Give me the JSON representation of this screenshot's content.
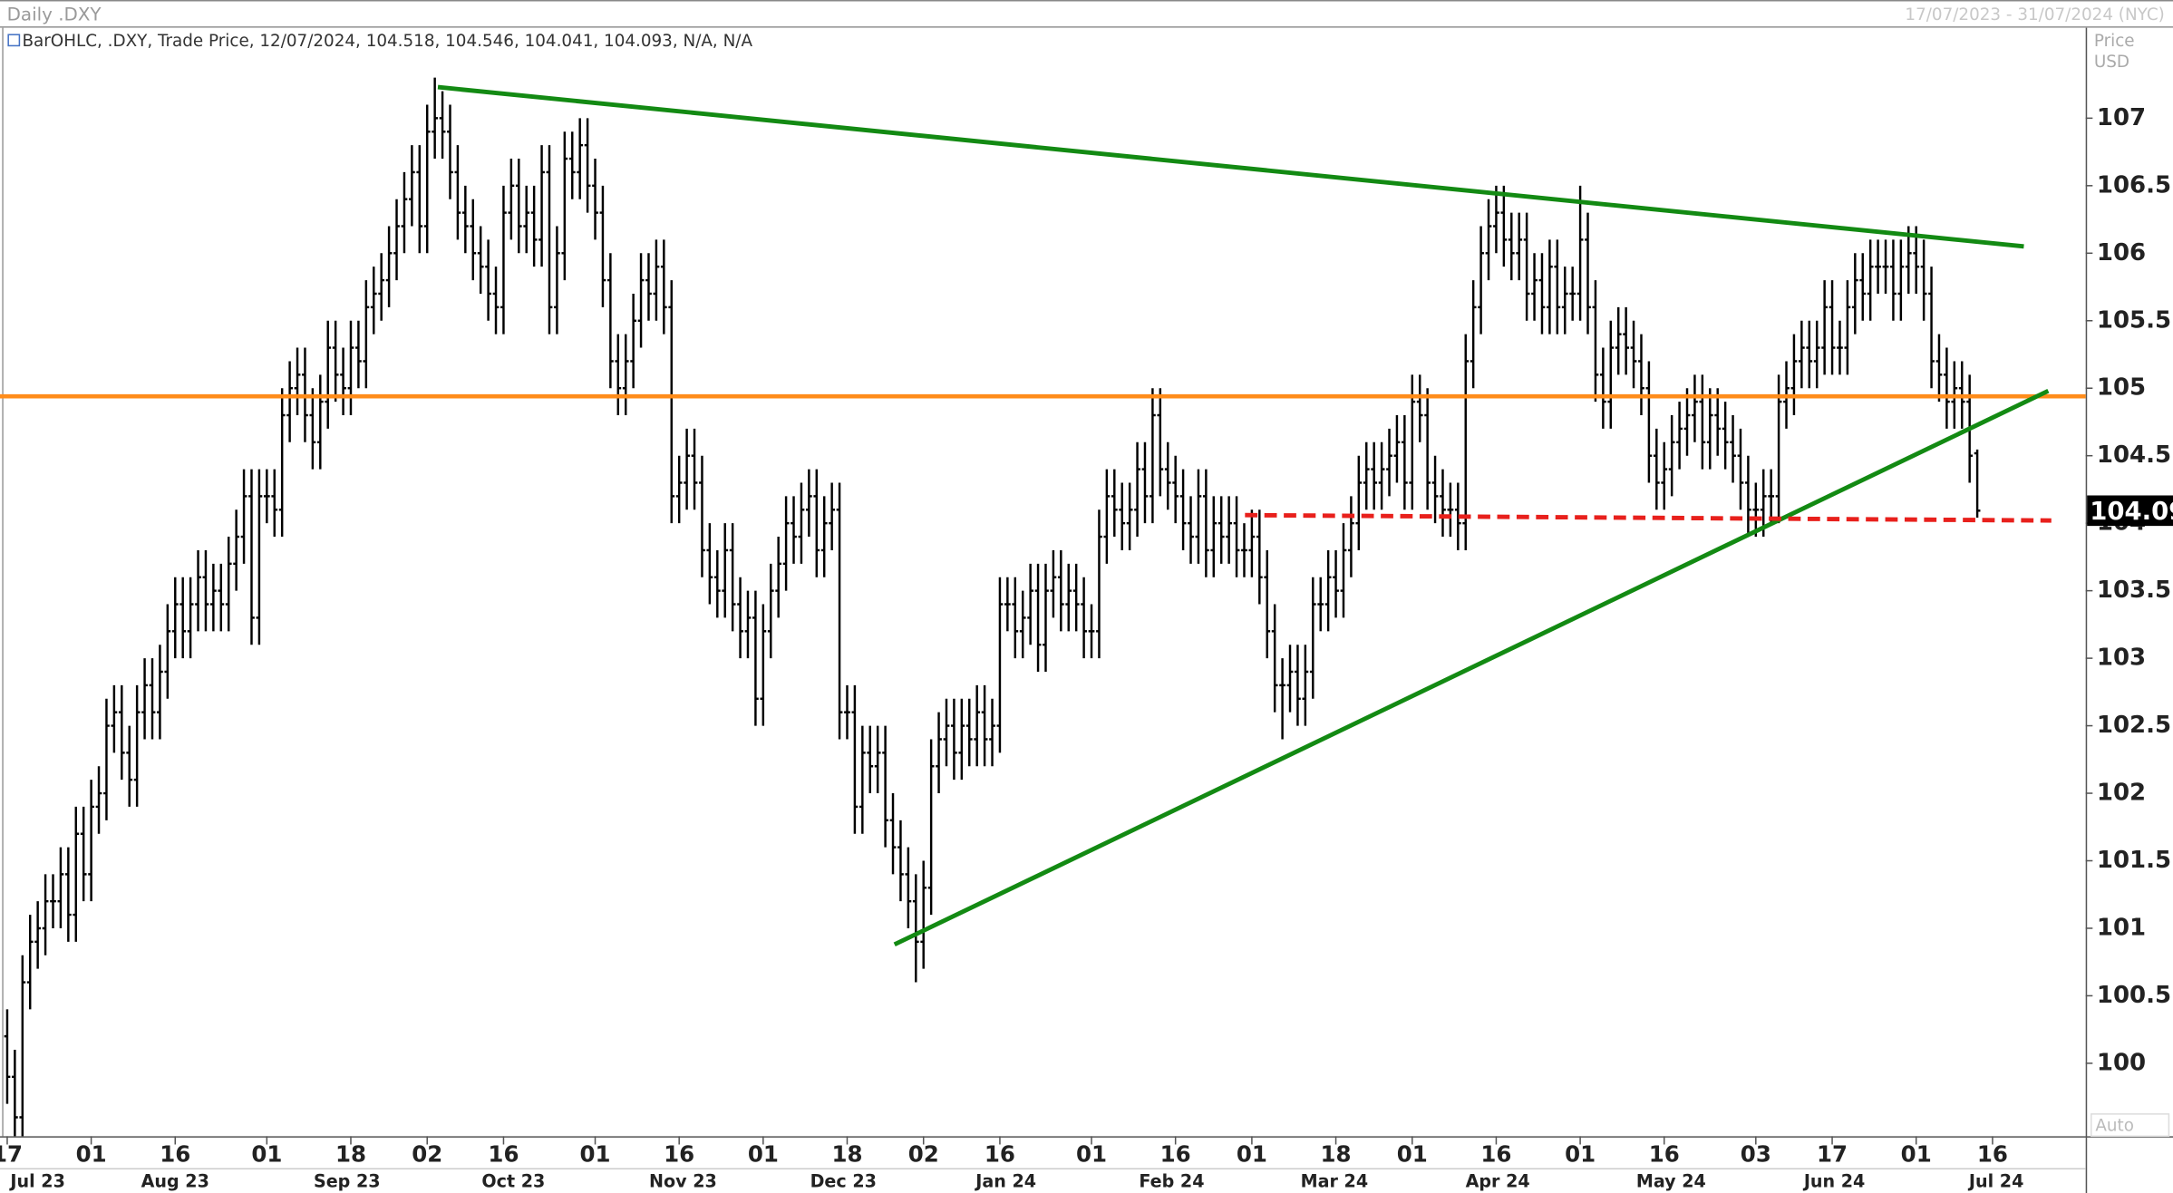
{
  "chart_data": {
    "type": "ohlc",
    "title": "Daily .DXY",
    "date_range": "17/07/2023 - 31/07/2024 (NYC)",
    "legend": "BarOHLC, .DXY, Trade Price, 12/07/2024, 104.518, 104.546, 104.041, 104.093, N/A, N/A",
    "y_axis_label": [
      "Price",
      "USD"
    ],
    "scale_mode": "Auto",
    "color": "#000000",
    "xlim": [
      -0.4,
      272.2
    ],
    "ylim": [
      99.46,
      107.67
    ],
    "yticks": [
      100,
      100.5,
      101,
      101.5,
      102,
      102.5,
      103,
      103.5,
      104,
      104.5,
      105,
      105.5,
      106,
      106.5,
      107
    ],
    "xticks": [
      {
        "value": 0,
        "label": "17"
      },
      {
        "value": 11,
        "label": "01"
      },
      {
        "value": 22,
        "label": "16"
      },
      {
        "value": 34,
        "label": "01"
      },
      {
        "value": 45,
        "label": "18"
      },
      {
        "value": 55,
        "label": "02"
      },
      {
        "value": 65,
        "label": "16"
      },
      {
        "value": 77,
        "label": "01"
      },
      {
        "value": 88,
        "label": "16"
      },
      {
        "value": 99,
        "label": "01"
      },
      {
        "value": 110,
        "label": "18"
      },
      {
        "value": 120,
        "label": "02"
      },
      {
        "value": 130,
        "label": "16"
      },
      {
        "value": 142,
        "label": "01"
      },
      {
        "value": 153,
        "label": "16"
      },
      {
        "value": 163,
        "label": "01"
      },
      {
        "value": 174,
        "label": "18"
      },
      {
        "value": 184,
        "label": "01"
      },
      {
        "value": 195,
        "label": "16"
      },
      {
        "value": 206,
        "label": "01"
      },
      {
        "value": 217,
        "label": "16"
      },
      {
        "value": 229,
        "label": "03"
      },
      {
        "value": 239,
        "label": "17"
      },
      {
        "value": 250,
        "label": "01"
      },
      {
        "value": 260,
        "label": "16"
      }
    ],
    "month_labels": [
      {
        "value": 4,
        "label": "Jul 23"
      },
      {
        "value": 22,
        "label": "Aug 23"
      },
      {
        "value": 44.5,
        "label": "Sep 23"
      },
      {
        "value": 66.3,
        "label": "Oct 23"
      },
      {
        "value": 88.5,
        "label": "Nov 23"
      },
      {
        "value": 109.5,
        "label": "Dec 23"
      },
      {
        "value": 130.8,
        "label": "Jan 24"
      },
      {
        "value": 152.5,
        "label": "Feb 24"
      },
      {
        "value": 173.8,
        "label": "Mar 24"
      },
      {
        "value": 195.2,
        "label": "Apr 24"
      },
      {
        "value": 217.9,
        "label": "May 24"
      },
      {
        "value": 239.3,
        "label": "Jun 24"
      },
      {
        "value": 260.5,
        "label": "Jul 24"
      }
    ],
    "open": [
      100.2,
      99.9,
      99.6,
      100.6,
      100.9,
      101.0,
      101.2,
      101.2,
      101.4,
      101.1,
      101.7,
      101.4,
      101.9,
      102.0,
      102.5,
      102.6,
      102.3,
      102.1,
      102.6,
      102.8,
      102.6,
      102.9,
      103.2,
      103.4,
      103.2,
      103.4,
      103.6,
      103.4,
      103.5,
      103.4,
      103.7,
      103.9,
      104.2,
      103.3,
      104.2,
      104.2,
      104.1,
      104.8,
      105.0,
      105.1,
      104.8,
      104.6,
      104.9,
      105.3,
      105.1,
      105.0,
      105.3,
      105.2,
      105.6,
      105.7,
      105.8,
      106.0,
      106.2,
      106.4,
      106.6,
      106.2,
      106.9,
      107.0,
      106.9,
      106.6,
      106.3,
      106.2,
      106.0,
      105.9,
      105.7,
      105.6,
      106.3,
      106.5,
      106.2,
      106.3,
      106.1,
      106.6,
      105.6,
      106.0,
      106.7,
      106.6,
      106.8,
      106.5,
      106.3,
      105.8,
      105.2,
      105.0,
      105.2,
      105.5,
      105.8,
      105.7,
      105.9,
      105.6,
      104.2,
      104.3,
      104.5,
      104.3,
      103.8,
      103.6,
      103.5,
      103.8,
      103.4,
      103.2,
      103.3,
      102.7,
      103.2,
      103.5,
      103.7,
      104.0,
      103.9,
      104.1,
      104.2,
      103.8,
      104.0,
      104.1,
      102.6,
      102.6,
      101.9,
      102.3,
      102.2,
      102.3,
      101.8,
      101.6,
      101.4,
      101.2,
      100.9,
      101.3,
      102.2,
      102.4,
      102.5,
      102.3,
      102.5,
      102.4,
      102.6,
      102.4,
      102.5,
      103.4,
      103.4,
      103.2,
      103.3,
      103.5,
      103.1,
      103.5,
      103.6,
      103.4,
      103.5,
      103.4,
      103.2,
      103.2,
      103.9,
      104.2,
      104.1,
      104.0,
      104.1,
      104.4,
      104.2,
      104.8,
      104.4,
      104.3,
      104.2,
      104.0,
      103.9,
      104.2,
      103.8,
      104.0,
      103.9,
      104.0,
      103.8,
      103.8,
      103.9,
      103.6,
      103.2,
      102.8,
      102.8,
      102.9,
      102.7,
      102.9,
      103.4,
      103.4,
      103.6,
      103.5,
      103.8,
      104.0,
      104.3,
      104.4,
      104.3,
      104.4,
      104.5,
      104.6,
      104.3,
      104.9,
      104.8,
      104.3,
      104.2,
      104.1,
      104.1,
      104.0,
      105.2,
      105.6,
      106.0,
      106.2,
      106.3,
      106.1,
      106.0,
      106.1,
      105.7,
      105.8,
      105.6,
      105.9,
      105.6,
      105.7,
      105.7,
      106.1,
      105.6,
      105.1,
      104.9,
      105.3,
      105.4,
      105.3,
      105.2,
      105.0,
      104.5,
      104.3,
      104.4,
      104.6,
      104.7,
      104.8,
      104.9,
      104.6,
      104.8,
      104.7,
      104.6,
      104.5,
      104.3,
      104.1,
      104.1,
      104.2,
      104.2,
      104.9,
      105.0,
      105.2,
      105.3,
      105.2,
      105.3,
      105.6,
      105.3,
      105.3,
      105.6,
      105.8,
      105.7,
      105.9,
      105.9,
      105.9,
      105.7,
      105.9,
      106.0,
      105.9,
      105.7,
      105.2,
      105.1,
      104.9,
      105.0,
      104.9,
      104.518
    ],
    "high": [
      100.4,
      100.1,
      100.8,
      101.1,
      101.2,
      101.4,
      101.4,
      101.6,
      101.6,
      101.9,
      101.9,
      102.1,
      102.2,
      102.7,
      102.8,
      102.8,
      102.5,
      102.8,
      103.0,
      103.0,
      103.1,
      103.4,
      103.6,
      103.6,
      103.6,
      103.8,
      103.8,
      103.7,
      103.7,
      103.9,
      104.1,
      104.4,
      104.4,
      104.4,
      104.4,
      104.4,
      105.0,
      105.2,
      105.3,
      105.3,
      105.0,
      105.1,
      105.5,
      105.5,
      105.3,
      105.5,
      105.5,
      105.8,
      105.9,
      106.0,
      106.2,
      106.4,
      106.6,
      106.8,
      106.8,
      107.1,
      107.3,
      107.2,
      107.1,
      106.8,
      106.5,
      106.4,
      106.2,
      106.1,
      105.9,
      106.5,
      106.7,
      106.7,
      106.5,
      106.5,
      106.8,
      106.8,
      106.2,
      106.9,
      106.9,
      107.0,
      107.0,
      106.7,
      106.5,
      106.0,
      105.4,
      105.4,
      105.7,
      106.0,
      106.0,
      106.1,
      106.1,
      105.8,
      104.5,
      104.7,
      104.7,
      104.5,
      104.0,
      103.8,
      104.0,
      104.0,
      103.6,
      103.5,
      103.5,
      103.4,
      103.7,
      103.9,
      104.2,
      104.2,
      104.3,
      104.4,
      104.4,
      104.2,
      104.3,
      104.3,
      102.8,
      102.8,
      102.5,
      102.5,
      102.5,
      102.5,
      102.0,
      101.8,
      101.6,
      101.4,
      101.5,
      102.4,
      102.6,
      102.7,
      102.7,
      102.7,
      102.7,
      102.8,
      102.8,
      102.7,
      103.6,
      103.6,
      103.6,
      103.5,
      103.7,
      103.7,
      103.7,
      103.8,
      103.8,
      103.7,
      103.7,
      103.6,
      103.4,
      104.1,
      104.4,
      104.4,
      104.3,
      104.3,
      104.6,
      104.6,
      105.0,
      105.0,
      104.6,
      104.5,
      104.4,
      104.2,
      104.4,
      104.4,
      104.2,
      104.2,
      104.2,
      104.2,
      104.0,
      104.1,
      104.1,
      103.8,
      103.4,
      103.0,
      103.1,
      103.1,
      103.1,
      103.6,
      103.6,
      103.8,
      103.8,
      104.0,
      104.2,
      104.5,
      104.6,
      104.6,
      104.6,
      104.7,
      104.8,
      104.8,
      105.1,
      105.1,
      105.0,
      104.5,
      104.4,
      104.3,
      104.3,
      105.4,
      105.8,
      106.2,
      106.4,
      106.5,
      106.5,
      106.3,
      106.3,
      106.3,
      106.0,
      106.0,
      106.1,
      106.1,
      105.9,
      105.9,
      106.5,
      106.3,
      105.8,
      105.3,
      105.5,
      105.6,
      105.6,
      105.5,
      105.4,
      105.2,
      104.7,
      104.6,
      104.8,
      104.9,
      105.0,
      105.1,
      105.1,
      105.0,
      105.0,
      104.9,
      104.8,
      104.7,
      104.5,
      104.3,
      104.4,
      104.4,
      105.1,
      105.2,
      105.4,
      105.5,
      105.5,
      105.5,
      105.8,
      105.8,
      105.5,
      105.8,
      106.0,
      106.0,
      106.1,
      106.1,
      106.1,
      106.1,
      106.1,
      106.2,
      106.2,
      106.1,
      105.9,
      105.4,
      105.3,
      105.2,
      105.2,
      105.1,
      104.546
    ],
    "low": [
      99.7,
      99.4,
      99.4,
      100.4,
      100.7,
      100.8,
      101.0,
      101.0,
      100.9,
      100.9,
      101.2,
      101.2,
      101.7,
      101.8,
      102.3,
      102.1,
      101.9,
      101.9,
      102.4,
      102.4,
      102.4,
      102.7,
      103.0,
      103.0,
      103.0,
      103.2,
      103.2,
      103.2,
      103.2,
      103.2,
      103.5,
      103.7,
      103.1,
      103.1,
      104.0,
      103.9,
      103.9,
      104.6,
      104.8,
      104.6,
      104.4,
      104.4,
      104.7,
      104.9,
      104.8,
      104.8,
      105.0,
      105.0,
      105.4,
      105.5,
      105.6,
      105.8,
      106.0,
      106.2,
      106.0,
      106.0,
      106.7,
      106.7,
      106.4,
      106.1,
      106.0,
      105.8,
      105.7,
      105.5,
      105.4,
      105.4,
      106.1,
      106.0,
      106.0,
      105.9,
      105.9,
      105.4,
      105.4,
      105.8,
      106.4,
      106.4,
      106.3,
      106.1,
      105.6,
      105.0,
      104.8,
      104.8,
      105.0,
      105.3,
      105.5,
      105.5,
      105.4,
      104.0,
      104.0,
      104.1,
      104.1,
      103.6,
      103.4,
      103.3,
      103.3,
      103.2,
      103.0,
      103.0,
      102.5,
      102.5,
      103.0,
      103.3,
      103.5,
      103.7,
      103.7,
      103.9,
      103.6,
      103.6,
      103.8,
      102.4,
      102.4,
      101.7,
      101.7,
      102.0,
      102.0,
      101.6,
      101.4,
      101.2,
      101.0,
      100.6,
      100.7,
      101.1,
      102.0,
      102.2,
      102.1,
      102.1,
      102.2,
      102.2,
      102.2,
      102.2,
      102.3,
      103.2,
      103.0,
      103.0,
      103.1,
      102.9,
      102.9,
      103.3,
      103.2,
      103.2,
      103.2,
      103.0,
      103.0,
      103.0,
      103.7,
      103.9,
      103.8,
      103.8,
      103.9,
      104.0,
      104.0,
      104.2,
      104.1,
      104.0,
      103.8,
      103.7,
      103.7,
      103.6,
      103.6,
      103.7,
      103.7,
      103.6,
      103.6,
      103.6,
      103.4,
      103.0,
      102.6,
      102.4,
      102.6,
      102.5,
      102.5,
      102.7,
      103.2,
      103.2,
      103.3,
      103.3,
      103.6,
      103.8,
      104.1,
      104.1,
      104.1,
      104.2,
      104.3,
      104.1,
      104.1,
      104.6,
      104.1,
      104.0,
      103.9,
      103.9,
      103.8,
      103.8,
      105.0,
      105.4,
      105.8,
      106.0,
      105.9,
      105.8,
      105.8,
      105.5,
      105.5,
      105.4,
      105.4,
      105.4,
      105.4,
      105.5,
      105.5,
      105.4,
      104.9,
      104.7,
      104.7,
      105.1,
      105.1,
      105.0,
      104.8,
      104.3,
      104.1,
      104.1,
      104.2,
      104.4,
      104.5,
      104.6,
      104.4,
      104.4,
      104.5,
      104.4,
      104.3,
      104.1,
      103.9,
      103.9,
      103.9,
      104.0,
      104.0,
      104.7,
      104.8,
      105.0,
      105.0,
      105.0,
      105.1,
      105.1,
      105.1,
      105.1,
      105.4,
      105.5,
      105.5,
      105.7,
      105.7,
      105.5,
      105.5,
      105.7,
      105.7,
      105.5,
      105.0,
      104.9,
      104.7,
      104.7,
      104.7,
      104.3,
      104.041
    ],
    "close": [
      99.9,
      99.6,
      100.6,
      100.9,
      101.0,
      101.2,
      101.2,
      101.4,
      101.1,
      101.7,
      101.4,
      101.9,
      102.0,
      102.5,
      102.6,
      102.3,
      102.1,
      102.6,
      102.8,
      102.6,
      102.9,
      103.2,
      103.4,
      103.2,
      103.4,
      103.6,
      103.4,
      103.5,
      103.4,
      103.7,
      103.9,
      104.2,
      103.3,
      104.2,
      104.2,
      104.1,
      104.8,
      105.0,
      105.1,
      104.8,
      104.6,
      104.9,
      105.3,
      105.1,
      105.0,
      105.3,
      105.2,
      105.6,
      105.7,
      105.8,
      106.0,
      106.2,
      106.4,
      106.6,
      106.2,
      106.9,
      107.0,
      106.9,
      106.6,
      106.3,
      106.2,
      106.0,
      105.9,
      105.7,
      105.6,
      106.3,
      106.5,
      106.2,
      106.3,
      106.1,
      106.6,
      105.6,
      106.0,
      106.7,
      106.6,
      106.8,
      106.5,
      106.3,
      105.8,
      105.2,
      105.0,
      105.2,
      105.5,
      105.8,
      105.7,
      105.9,
      105.6,
      104.2,
      104.3,
      104.5,
      104.3,
      103.8,
      103.6,
      103.5,
      103.8,
      103.4,
      103.2,
      103.3,
      102.7,
      103.2,
      103.5,
      103.7,
      104.0,
      103.9,
      104.1,
      104.2,
      103.8,
      104.0,
      104.1,
      102.6,
      102.6,
      101.9,
      102.3,
      102.2,
      102.3,
      101.8,
      101.6,
      101.4,
      101.2,
      100.9,
      101.3,
      102.2,
      102.4,
      102.5,
      102.3,
      102.5,
      102.4,
      102.6,
      102.4,
      102.5,
      103.4,
      103.4,
      103.2,
      103.3,
      103.5,
      103.1,
      103.5,
      103.6,
      103.4,
      103.5,
      103.4,
      103.2,
      103.2,
      103.9,
      104.2,
      104.1,
      104.0,
      104.1,
      104.4,
      104.2,
      104.8,
      104.4,
      104.3,
      104.2,
      104.0,
      103.9,
      104.2,
      103.8,
      104.0,
      103.9,
      104.0,
      103.8,
      103.8,
      103.9,
      103.6,
      103.2,
      102.8,
      102.8,
      102.9,
      102.7,
      102.9,
      103.4,
      103.4,
      103.6,
      103.5,
      103.8,
      104.0,
      104.3,
      104.4,
      104.3,
      104.4,
      104.5,
      104.6,
      104.3,
      104.9,
      104.8,
      104.3,
      104.2,
      104.1,
      104.1,
      104.0,
      105.2,
      105.6,
      106.0,
      106.2,
      106.3,
      106.1,
      106.0,
      106.1,
      105.7,
      105.8,
      105.6,
      105.9,
      105.6,
      105.7,
      105.7,
      106.1,
      105.6,
      105.1,
      104.9,
      105.3,
      105.4,
      105.3,
      105.2,
      105.0,
      104.5,
      104.3,
      104.4,
      104.6,
      104.7,
      104.8,
      104.9,
      104.6,
      104.8,
      104.7,
      104.6,
      104.5,
      104.3,
      104.1,
      104.1,
      104.2,
      104.2,
      104.9,
      105.0,
      105.2,
      105.3,
      105.2,
      105.3,
      105.6,
      105.3,
      105.3,
      105.6,
      105.8,
      105.7,
      105.9,
      105.9,
      105.9,
      105.7,
      105.9,
      106.0,
      105.9,
      105.7,
      105.2,
      105.1,
      104.9,
      105.0,
      104.9,
      104.5,
      104.093
    ],
    "hlines": [
      {
        "value": 104.94,
        "color": "#ff8c1a"
      }
    ],
    "trendlines": [
      {
        "color": "#138a13",
        "dashed": false,
        "x": [
          56.4,
          264.1
        ],
        "y": [
          107.23,
          106.05
        ]
      },
      {
        "color": "#138a13",
        "dashed": false,
        "x": [
          116.2,
          267.3
        ],
        "y": [
          100.88,
          104.98
        ]
      },
      {
        "color": "#e8201c",
        "dashed": true,
        "x": [
          162.1,
          267.7
        ],
        "y": [
          104.06,
          104.02
        ]
      }
    ]
  }
}
